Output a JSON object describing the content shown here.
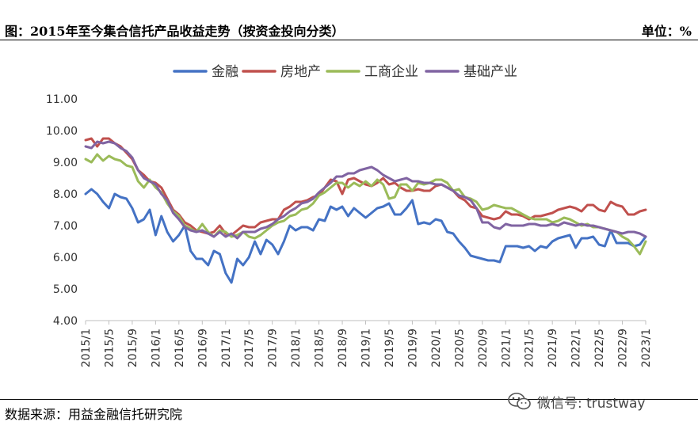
{
  "header": {
    "title": "图：2015年至今集合信托产品收益走势（按资金投向分类）",
    "unit": "单位：%"
  },
  "footer": {
    "source": "数据来源：用益金融信托研究院"
  },
  "watermark": {
    "text": "微信号: trustway",
    "icon": "wechat-icon"
  },
  "chart_data": {
    "type": "line",
    "ylim": [
      4,
      11
    ],
    "yticks": [
      "4.00",
      "5.00",
      "6.00",
      "7.00",
      "8.00",
      "9.00",
      "10.00",
      "11.00"
    ],
    "xticks": [
      "2015/1",
      "2015/5",
      "2015/9",
      "2016/1",
      "2016/5",
      "2016/9",
      "2017/1",
      "2017/5",
      "2017/9",
      "2018/1",
      "2018/5",
      "2018/9",
      "2019/1",
      "2019/5",
      "2019/9",
      "2020/1",
      "2020/5",
      "2020/9",
      "2021/1",
      "2021/5",
      "2021/9",
      "2022/1",
      "2022/5",
      "2022/9",
      "2023/1"
    ],
    "legend_position": "top",
    "series": [
      {
        "name": "金融",
        "color": "#4472C4",
        "values": [
          8.0,
          8.15,
          8.0,
          7.75,
          7.55,
          8.0,
          7.9,
          7.85,
          7.55,
          7.1,
          7.2,
          7.5,
          6.7,
          7.3,
          6.8,
          6.5,
          6.7,
          7.0,
          6.2,
          5.95,
          5.95,
          5.75,
          6.2,
          6.1,
          5.5,
          5.2,
          5.95,
          5.75,
          6.0,
          6.5,
          6.1,
          6.55,
          6.4,
          6.1,
          6.5,
          7.0,
          6.85,
          6.95,
          6.95,
          6.85,
          7.2,
          7.15,
          7.6,
          7.5,
          7.6,
          7.3,
          7.55,
          7.4,
          7.25,
          7.4,
          7.55,
          7.6,
          7.7,
          7.35,
          7.35,
          7.55,
          7.8,
          7.05,
          7.1,
          7.05,
          7.2,
          7.15,
          6.8,
          6.75,
          6.5,
          6.3,
          6.05,
          6.0,
          5.95,
          5.9,
          5.9,
          5.85,
          6.35,
          6.35,
          6.35,
          6.3,
          6.35,
          6.2,
          6.35,
          6.3,
          6.5,
          6.6,
          6.65,
          6.7,
          6.3,
          6.6,
          6.6,
          6.65,
          6.4,
          6.35,
          6.85,
          6.45,
          6.45,
          6.45,
          6.35,
          6.4,
          6.65
        ]
      },
      {
        "name": "房地产",
        "color": "#C0504D",
        "values": [
          9.7,
          9.75,
          9.5,
          9.75,
          9.75,
          9.6,
          9.5,
          9.3,
          9.1,
          8.75,
          8.6,
          8.4,
          8.35,
          8.2,
          7.85,
          7.5,
          7.35,
          7.1,
          7.0,
          6.85,
          6.8,
          6.75,
          6.8,
          7.0,
          6.75,
          6.7,
          6.85,
          7.0,
          6.95,
          6.95,
          7.1,
          7.15,
          7.2,
          7.2,
          7.5,
          7.6,
          7.75,
          7.75,
          7.8,
          7.9,
          7.95,
          8.2,
          8.45,
          8.4,
          8.0,
          8.45,
          8.5,
          8.4,
          8.3,
          8.25,
          8.35,
          8.5,
          8.3,
          8.35,
          8.2,
          8.1,
          8.1,
          8.15,
          8.1,
          8.1,
          8.25,
          8.3,
          8.2,
          8.1,
          7.9,
          7.8,
          7.6,
          7.55,
          7.3,
          7.25,
          7.2,
          7.25,
          7.45,
          7.35,
          7.35,
          7.3,
          7.2,
          7.3,
          7.3,
          7.35,
          7.4,
          7.5,
          7.55,
          7.6,
          7.55,
          7.45,
          7.65,
          7.65,
          7.5,
          7.45,
          7.75,
          7.65,
          7.6,
          7.35,
          7.35,
          7.45,
          7.5
        ]
      },
      {
        "name": "工商企业",
        "color": "#9BBB59",
        "values": [
          9.1,
          9.0,
          9.25,
          9.05,
          9.2,
          9.1,
          9.05,
          8.9,
          8.85,
          8.4,
          8.2,
          8.45,
          8.2,
          8.05,
          7.7,
          7.45,
          7.3,
          7.0,
          6.9,
          6.8,
          7.05,
          6.8,
          6.65,
          6.85,
          6.8,
          6.65,
          6.7,
          6.8,
          6.65,
          6.6,
          6.7,
          6.85,
          7.0,
          7.1,
          7.15,
          7.3,
          7.35,
          7.5,
          7.55,
          7.7,
          7.95,
          8.05,
          8.2,
          8.35,
          8.35,
          8.2,
          8.35,
          8.25,
          8.4,
          8.25,
          8.45,
          8.3,
          7.85,
          7.9,
          8.3,
          8.3,
          8.1,
          8.35,
          8.3,
          8.35,
          8.45,
          8.45,
          8.35,
          8.1,
          8.15,
          7.9,
          7.85,
          7.75,
          7.5,
          7.55,
          7.65,
          7.6,
          7.55,
          7.55,
          7.45,
          7.35,
          7.25,
          7.2,
          7.2,
          7.2,
          7.1,
          7.15,
          7.25,
          7.2,
          7.1,
          7.0,
          7.05,
          6.95,
          6.95,
          6.9,
          6.85,
          6.8,
          6.65,
          6.55,
          6.35,
          6.1,
          6.5
        ]
      },
      {
        "name": "基础产业",
        "color": "#8064A2",
        "values": [
          9.5,
          9.45,
          9.65,
          9.6,
          9.65,
          9.6,
          9.45,
          9.35,
          9.15,
          8.75,
          8.5,
          8.4,
          8.3,
          8.0,
          7.8,
          7.4,
          7.2,
          6.95,
          6.85,
          6.8,
          6.85,
          6.75,
          6.65,
          6.8,
          6.65,
          6.75,
          6.6,
          6.8,
          6.8,
          6.8,
          6.9,
          6.95,
          7.05,
          7.2,
          7.3,
          7.45,
          7.55,
          7.7,
          7.75,
          7.85,
          8.05,
          8.2,
          8.35,
          8.55,
          8.55,
          8.65,
          8.65,
          8.75,
          8.8,
          8.85,
          8.75,
          8.6,
          8.5,
          8.4,
          8.45,
          8.5,
          8.4,
          8.4,
          8.35,
          8.35,
          8.3,
          8.3,
          8.2,
          8.1,
          7.95,
          7.9,
          7.8,
          7.55,
          7.1,
          7.1,
          6.95,
          6.9,
          7.05,
          7.0,
          7.0,
          7.0,
          7.05,
          7.05,
          7.0,
          7.0,
          7.05,
          7.0,
          7.1,
          7.05,
          7.0,
          7.05,
          7.0,
          7.0,
          6.95,
          6.9,
          6.85,
          6.8,
          6.75,
          6.8,
          6.8,
          6.75,
          6.65
        ]
      }
    ]
  }
}
